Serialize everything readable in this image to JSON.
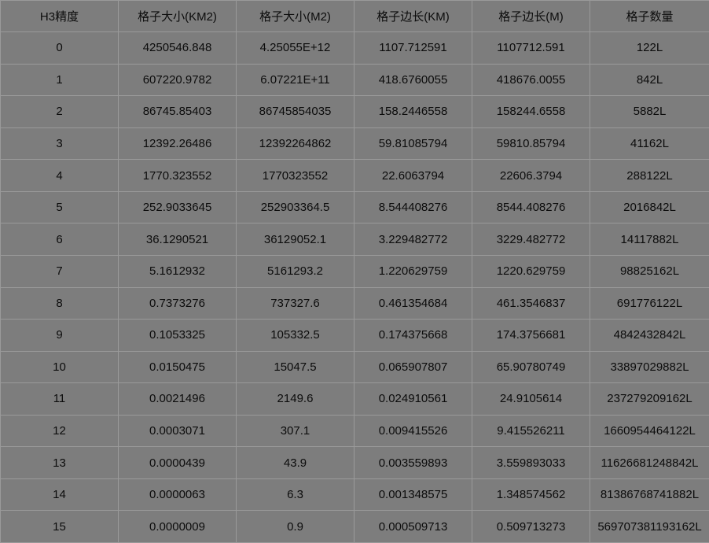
{
  "table": {
    "headers": [
      "H3精度",
      "格子大小(KM2)",
      "格子大小(M2)",
      "格子边长(KM)",
      "格子边长(M)",
      "格子数量"
    ],
    "rows": [
      [
        "0",
        "4250546.848",
        "4.25055E+12",
        "1107.712591",
        "1107712.591",
        "122L"
      ],
      [
        "1",
        "607220.9782",
        "6.07221E+11",
        "418.6760055",
        "418676.0055",
        "842L"
      ],
      [
        "2",
        "86745.85403",
        "86745854035",
        "158.2446558",
        "158244.6558",
        "5882L"
      ],
      [
        "3",
        "12392.26486",
        "12392264862",
        "59.81085794",
        "59810.85794",
        "41162L"
      ],
      [
        "4",
        "1770.323552",
        "1770323552",
        "22.6063794",
        "22606.3794",
        "288122L"
      ],
      [
        "5",
        "252.9033645",
        "252903364.5",
        "8.544408276",
        "8544.408276",
        "2016842L"
      ],
      [
        "6",
        "36.1290521",
        "36129052.1",
        "3.229482772",
        "3229.482772",
        "14117882L"
      ],
      [
        "7",
        "5.1612932",
        "5161293.2",
        "1.220629759",
        "1220.629759",
        "98825162L"
      ],
      [
        "8",
        "0.7373276",
        "737327.6",
        "0.461354684",
        "461.3546837",
        "691776122L"
      ],
      [
        "9",
        "0.1053325",
        "105332.5",
        "0.174375668",
        "174.3756681",
        "4842432842L"
      ],
      [
        "10",
        "0.0150475",
        "15047.5",
        "0.065907807",
        "65.90780749",
        "33897029882L"
      ],
      [
        "11",
        "0.0021496",
        "2149.6",
        "0.024910561",
        "24.9105614",
        "237279209162L"
      ],
      [
        "12",
        "0.0003071",
        "307.1",
        "0.009415526",
        "9.415526211",
        "1660954464122L"
      ],
      [
        "13",
        "0.0000439",
        "43.9",
        "0.003559893",
        "3.559893033",
        "11626681248842L"
      ],
      [
        "14",
        "0.0000063",
        "6.3",
        "0.001348575",
        "1.348574562",
        "81386768741882L"
      ],
      [
        "15",
        "0.0000009",
        "0.9",
        "0.000509713",
        "0.509713273",
        "569707381193162L"
      ]
    ]
  }
}
